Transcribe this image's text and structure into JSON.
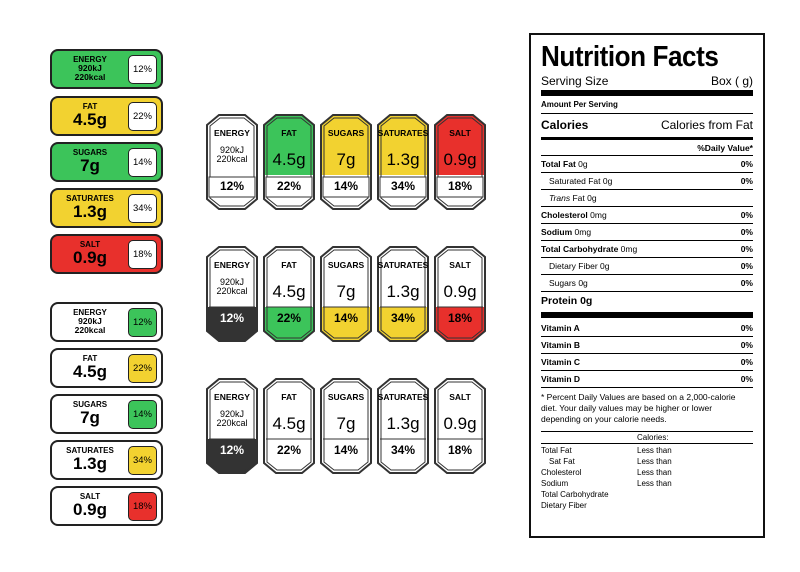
{
  "horizontal_colored": [
    {
      "name": "ENERGY",
      "line1": "920kJ",
      "line2": "220kcal",
      "pct": "12%",
      "color": "#3cc45a"
    },
    {
      "name": "FAT",
      "value": "4.5g",
      "pct": "22%",
      "color": "#f2d230"
    },
    {
      "name": "SUGARS",
      "value": "7g",
      "pct": "14%",
      "color": "#3cc45a"
    },
    {
      "name": "SATURATES",
      "value": "1.3g",
      "pct": "34%",
      "color": "#f2d230"
    },
    {
      "name": "SALT",
      "value": "0.9g",
      "pct": "18%",
      "color": "#e8302c"
    }
  ],
  "horizontal_white": [
    {
      "name": "ENERGY",
      "line1": "920kJ",
      "line2": "220kcal",
      "pct": "12%",
      "color": "#3cc45a"
    },
    {
      "name": "FAT",
      "value": "4.5g",
      "pct": "22%",
      "color": "#f2d230"
    },
    {
      "name": "SUGARS",
      "value": "7g",
      "pct": "14%",
      "color": "#3cc45a"
    },
    {
      "name": "SATURATES",
      "value": "1.3g",
      "pct": "34%",
      "color": "#f2d230"
    },
    {
      "name": "SALT",
      "value": "0.9g",
      "pct": "18%",
      "color": "#e8302c"
    }
  ],
  "vertical_items": [
    {
      "name": "ENERGY",
      "line1": "920kJ",
      "line2": "220kcal",
      "pct": "12%"
    },
    {
      "name": "FAT",
      "value": "4.5g",
      "pct": "22%"
    },
    {
      "name": "SUGARS",
      "value": "7g",
      "pct": "14%"
    },
    {
      "name": "SATURATES",
      "value": "1.3g",
      "pct": "34%"
    },
    {
      "name": "SALT",
      "value": "0.9g",
      "pct": "18%"
    }
  ],
  "vertical_colors": [
    "#ffffff",
    "#3cc45a",
    "#f2d230",
    "#f2d230",
    "#e8302c"
  ],
  "vertical_bottom_colors": [
    "#333333",
    "#3cc45a",
    "#f2d230",
    "#f2d230",
    "#e8302c"
  ],
  "nutrition": {
    "title": "Nutrition Facts",
    "serving_size": "Serving Size",
    "serving_box": "Box ( g)",
    "amount_per_serving": "Amount Per Serving",
    "calories": "Calories",
    "calories_from_fat": "Calories from Fat",
    "daily_value": "%Daily Value*",
    "rows": [
      {
        "label": "Total Fat",
        "amount": "0g",
        "pct": "0%",
        "bold": true,
        "indent": false
      },
      {
        "label": "Saturated Fat",
        "amount": "0g",
        "pct": "0%",
        "bold": false,
        "indent": true
      },
      {
        "label": "Trans",
        "amount": "Fat 0g",
        "pct": "",
        "bold": false,
        "indent": true,
        "italic": true
      },
      {
        "label": "Cholesterol",
        "amount": "0mg",
        "pct": "0%",
        "bold": true,
        "indent": false
      },
      {
        "label": "Sodium",
        "amount": "0mg",
        "pct": "0%",
        "bold": true,
        "indent": false
      },
      {
        "label": "Total Carbohydrate",
        "amount": "0mg",
        "pct": "0%",
        "bold": true,
        "indent": false
      },
      {
        "label": "Dietary Fiber",
        "amount": "0g",
        "pct": "0%",
        "bold": false,
        "indent": true
      },
      {
        "label": "Sugars",
        "amount": "0g",
        "pct": "0%",
        "bold": false,
        "indent": true
      }
    ],
    "protein": "Protein 0g",
    "vitamins": [
      {
        "label": "Vitamin A",
        "pct": "0%"
      },
      {
        "label": "Vitamin B",
        "pct": "0%"
      },
      {
        "label": "Vitamin C",
        "pct": "0%"
      },
      {
        "label": "Vitamin D",
        "pct": "0%"
      }
    ],
    "footnote": "* Percent Daily Values are based on a 2,000-calorie diet. Your daily values may be higher or lower depending on your calorie needs.",
    "calories_header": "Calories:",
    "table": [
      {
        "label": "Total Fat",
        "value": "Less than"
      },
      {
        "label": "Sat Fat",
        "value": "Less than"
      },
      {
        "label": "Cholesterol",
        "value": "Less than"
      },
      {
        "label": "Sodium",
        "value": "Less than"
      },
      {
        "label": "Total Carbohydrate",
        "value": ""
      },
      {
        "label": "Dietary Fiber",
        "value": ""
      }
    ]
  }
}
